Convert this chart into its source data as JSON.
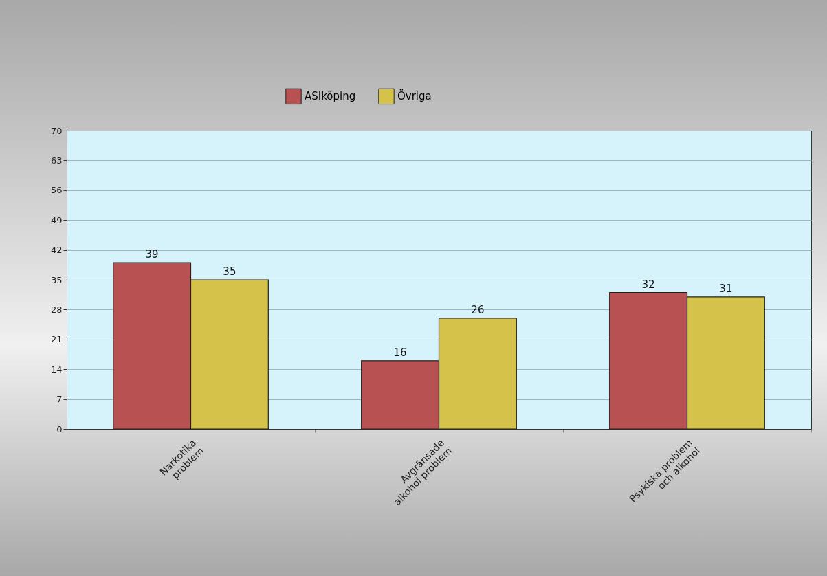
{
  "chart_data": {
    "type": "bar",
    "categories": [
      "Narkotika problem",
      "Avgränsade alkohol problem",
      "Psykiska problem och alkohol"
    ],
    "series": [
      {
        "name": "ASIköping",
        "color": "#b85252",
        "values": [
          39,
          16,
          32
        ]
      },
      {
        "name": "Övriga",
        "color": "#d4c24a",
        "values": [
          35,
          26,
          31
        ]
      }
    ],
    "ylim": [
      0,
      70
    ],
    "yticks": [
      0,
      7,
      14,
      21,
      28,
      35,
      42,
      49,
      56,
      63,
      70
    ],
    "grid": "y",
    "legend": "top",
    "data_labels": true
  }
}
